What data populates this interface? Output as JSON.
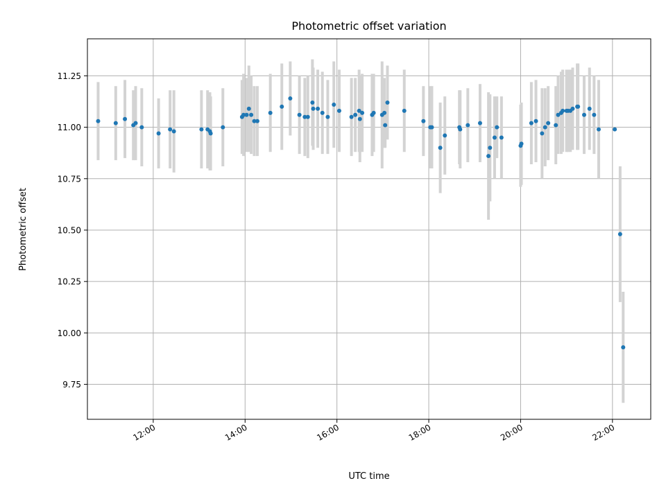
{
  "chart_data": {
    "type": "scatter",
    "title": "Photometric offset variation",
    "xlabel": "UTC time",
    "ylabel": "Photometric offset",
    "x_unit": "hours UTC",
    "xlim": [
      "10:34",
      "22:50"
    ],
    "ylim": [
      9.58,
      11.43
    ],
    "xticks": [
      "12:00",
      "14:00",
      "16:00",
      "18:00",
      "20:00",
      "22:00"
    ],
    "yticks": [
      "9.75",
      "10.00",
      "10.25",
      "10.50",
      "10.75",
      "11.00",
      "11.25"
    ],
    "grid": true,
    "colors": {
      "marker": "#1f77b4",
      "errorbar": "#d3d3d3"
    },
    "series": [
      {
        "x": [
          "10:48",
          "11:11",
          "11:23",
          "11:34",
          "11:37",
          "11:45",
          "12:07",
          "12:22",
          "12:27",
          "13:03",
          "13:11",
          "13:14",
          "13:15",
          "13:31",
          "13:56",
          "13:58",
          "14:02",
          "14:05",
          "14:08",
          "14:12",
          "14:16",
          "14:33",
          "14:48",
          "14:59",
          "15:11",
          "15:18",
          "15:22",
          "15:28",
          "15:29",
          "15:35",
          "15:41",
          "15:48",
          "15:56",
          "16:03",
          "16:19",
          "16:24",
          "16:29",
          "16:30",
          "16:33",
          "16:46",
          "16:48",
          "16:59",
          "17:02",
          "17:03",
          "17:06",
          "17:28",
          "17:53",
          "18:02",
          "18:04",
          "18:15",
          "18:21",
          "18:40",
          "18:41",
          "18:51",
          "19:07",
          "19:18",
          "19:20",
          "19:26",
          "19:29",
          "19:35",
          "20:00",
          "20:01",
          "20:14",
          "20:20",
          "20:28",
          "20:32",
          "20:36",
          "20:46",
          "20:49",
          "20:53",
          "20:55",
          "21:00",
          "21:02",
          "21:05",
          "21:08",
          "21:14",
          "21:15",
          "21:23",
          "21:30",
          "21:36",
          "21:42",
          "22:03",
          "22:10",
          "22:14"
        ],
        "y": [
          11.03,
          11.02,
          11.04,
          11.01,
          11.02,
          11.0,
          10.97,
          10.99,
          10.98,
          10.99,
          10.99,
          10.98,
          10.97,
          11.0,
          11.05,
          11.06,
          11.06,
          11.09,
          11.06,
          11.03,
          11.03,
          11.07,
          11.1,
          11.14,
          11.06,
          11.05,
          11.05,
          11.12,
          11.09,
          11.09,
          11.07,
          11.05,
          11.11,
          11.08,
          11.05,
          11.06,
          11.08,
          11.04,
          11.07,
          11.06,
          11.07,
          11.06,
          11.07,
          11.01,
          11.12,
          11.08,
          11.03,
          11.0,
          11.0,
          10.9,
          10.96,
          11.0,
          10.99,
          11.01,
          11.02,
          10.86,
          10.9,
          10.95,
          11.0,
          10.95,
          10.91,
          10.92,
          11.02,
          11.03,
          10.97,
          11.0,
          11.02,
          11.01,
          11.06,
          11.07,
          11.08,
          11.08,
          11.08,
          11.08,
          11.09,
          11.1,
          11.1,
          11.06,
          11.09,
          11.06,
          10.99,
          10.99,
          10.48,
          9.93
        ],
        "yerr": [
          0.19,
          0.18,
          0.19,
          0.17,
          0.18,
          0.19,
          0.17,
          0.19,
          0.2,
          0.19,
          0.19,
          0.19,
          0.18,
          0.19,
          0.18,
          0.2,
          0.18,
          0.21,
          0.19,
          0.17,
          0.17,
          0.19,
          0.21,
          0.18,
          0.19,
          0.19,
          0.2,
          0.21,
          0.2,
          0.19,
          0.2,
          0.18,
          0.21,
          0.2,
          0.19,
          0.18,
          0.2,
          0.21,
          0.19,
          0.2,
          0.19,
          0.26,
          0.17,
          0.11,
          0.18,
          0.2,
          0.17,
          0.2,
          0.2,
          0.22,
          0.19,
          0.18,
          0.19,
          0.18,
          0.19,
          0.31,
          0.26,
          0.2,
          0.15,
          0.2,
          0.2,
          0.2,
          0.2,
          0.2,
          0.22,
          0.19,
          0.18,
          0.19,
          0.19,
          0.2,
          0.2,
          0.2,
          0.2,
          0.2,
          0.2,
          0.21,
          0.21,
          0.19,
          0.2,
          0.19,
          0.24,
          0.0,
          0.33,
          0.27
        ]
      }
    ]
  }
}
